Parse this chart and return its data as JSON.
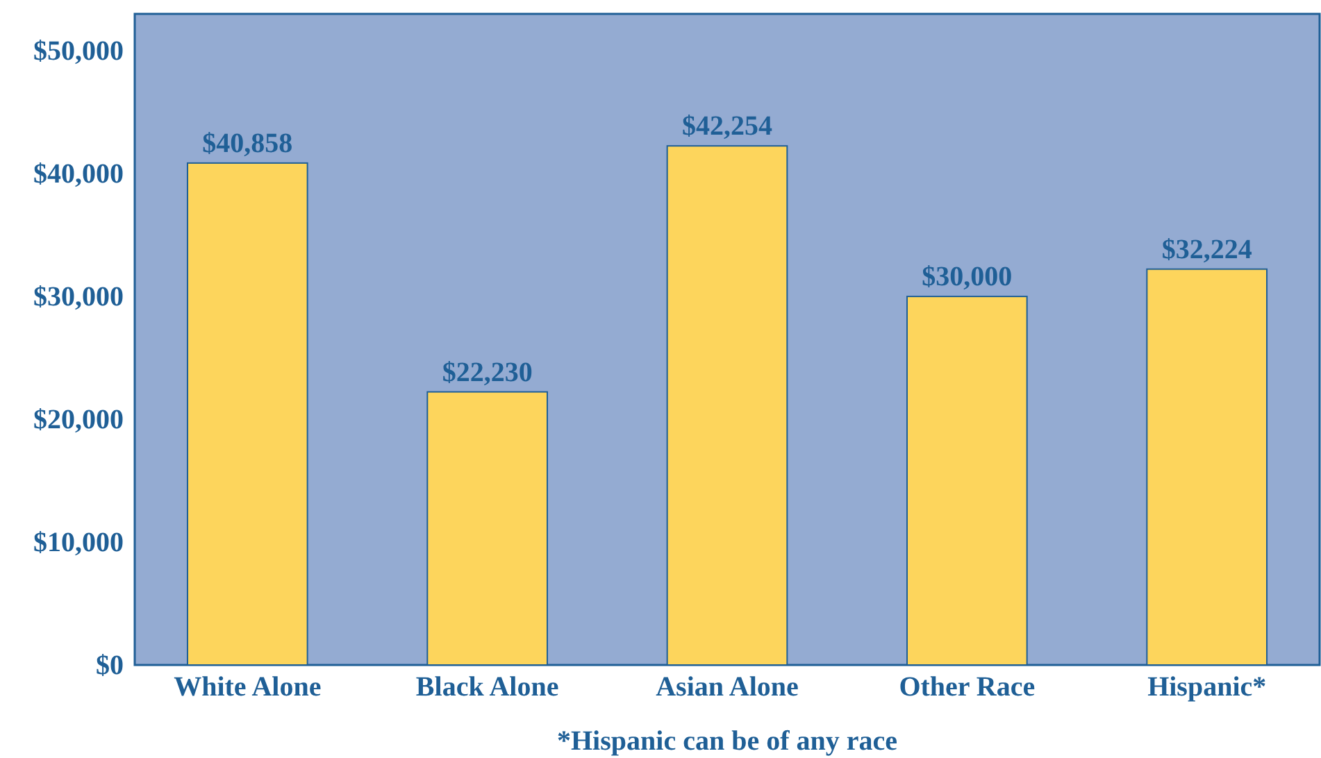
{
  "chart_data": {
    "type": "bar",
    "categories": [
      "White Alone",
      "Black Alone",
      "Asian Alone",
      "Other Race",
      "Hispanic*"
    ],
    "values": [
      40858,
      22230,
      42254,
      30000,
      32224
    ],
    "value_labels": [
      "$40,858",
      "$22,230",
      "$42,254",
      "$30,000",
      "$32,224"
    ],
    "color": "#fdd55c",
    "ylim": [
      0,
      53000
    ],
    "yticks": [
      {
        "value": 0,
        "label": "$0"
      },
      {
        "value": 10000,
        "label": "$10,000"
      },
      {
        "value": 20000,
        "label": "$20,000"
      },
      {
        "value": 30000,
        "label": "$30,000"
      },
      {
        "value": 40000,
        "label": "$40,000"
      },
      {
        "value": 50000,
        "label": "$50,000"
      }
    ],
    "grid": false,
    "annotations": [
      "*Hispanic can be of any race"
    ]
  }
}
